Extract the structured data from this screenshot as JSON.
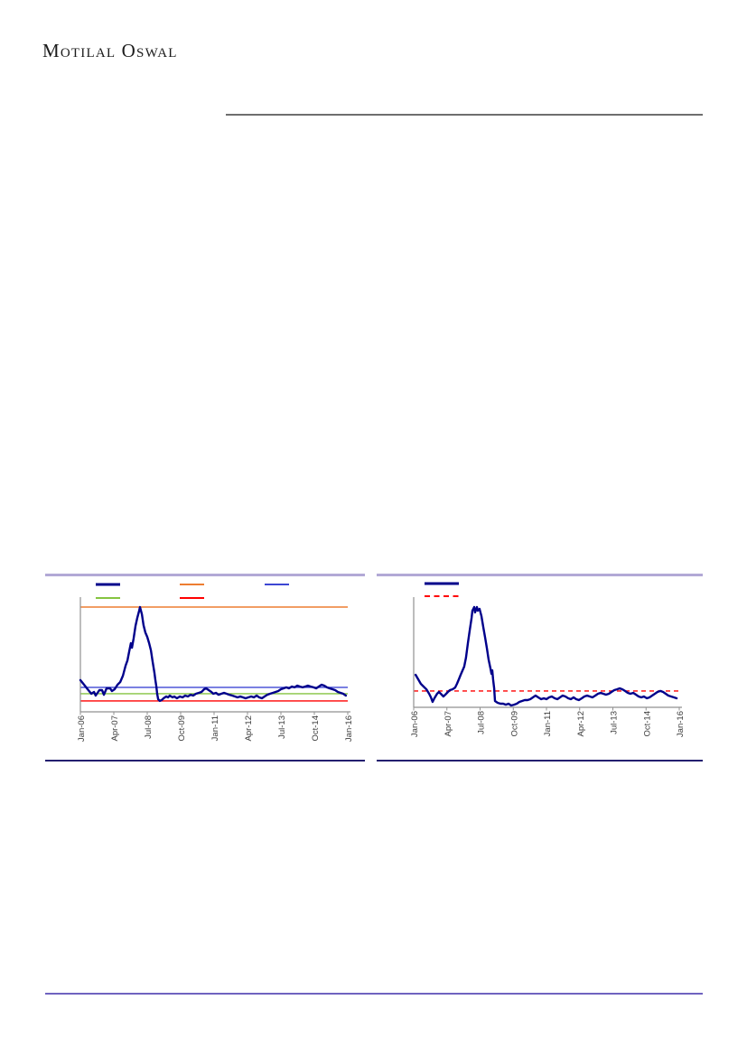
{
  "header": {
    "logo_text": "Motilal Oswal"
  },
  "dividers": {
    "header_color": "#6E6E6E",
    "chart_top_color": "#B2A9D6",
    "chart_bottom_color": "#231F70",
    "footer_color": "#6F63C0"
  },
  "chart_data": [
    {
      "type": "line",
      "title": "",
      "x_tick_labels": [
        "Jan-06",
        "Apr-07",
        "Jul-08",
        "Oct-09",
        "Jan-11",
        "Apr-12",
        "Jul-13",
        "Oct-14",
        "Jan-16"
      ],
      "y_axis": {
        "tick_labels_visible": false,
        "scale": "relative 0-100 of plot height"
      },
      "axis_color": "#919191",
      "legend": [
        {
          "label": "",
          "color": "#00008B",
          "style": "solid-thick"
        },
        {
          "label": "",
          "color": "#ED7D31",
          "style": "solid"
        },
        {
          "label": "",
          "color": "#3D46D3",
          "style": "solid"
        },
        {
          "label": "",
          "color": "#85C440",
          "style": "solid"
        },
        {
          "label": "",
          "color": "#FF0000",
          "style": "solid"
        }
      ],
      "reference_lines": [
        {
          "value": 94.3,
          "color": "#ED7D31",
          "style": "solid"
        },
        {
          "value": 22.0,
          "color": "#3D46D3",
          "style": "solid"
        },
        {
          "value": 16.3,
          "color": "#85C440",
          "style": "solid"
        },
        {
          "value": 9.8,
          "color": "#FF0000",
          "style": "solid"
        }
      ],
      "series": [
        {
          "name": "primary",
          "color": "#00008B",
          "width": 2.4,
          "points": [
            [
              0,
              28.5
            ],
            [
              0.014,
              24.4
            ],
            [
              0.027,
              20.3
            ],
            [
              0.041,
              16.3
            ],
            [
              0.051,
              17.9
            ],
            [
              0.057,
              14.6
            ],
            [
              0.071,
              19.5
            ],
            [
              0.081,
              19.5
            ],
            [
              0.088,
              15.4
            ],
            [
              0.098,
              21.1
            ],
            [
              0.111,
              21.1
            ],
            [
              0.118,
              18.7
            ],
            [
              0.128,
              20.3
            ],
            [
              0.139,
              24.4
            ],
            [
              0.149,
              26.8
            ],
            [
              0.159,
              32.5
            ],
            [
              0.169,
              41.5
            ],
            [
              0.176,
              46.3
            ],
            [
              0.182,
              53.7
            ],
            [
              0.189,
              61.8
            ],
            [
              0.193,
              57.7
            ],
            [
              0.199,
              65.9
            ],
            [
              0.206,
              77.2
            ],
            [
              0.213,
              84.6
            ],
            [
              0.22,
              91.1
            ],
            [
              0.223,
              94.3
            ],
            [
              0.23,
              87.8
            ],
            [
              0.236,
              78
            ],
            [
              0.243,
              71.5
            ],
            [
              0.25,
              67.5
            ],
            [
              0.257,
              61.8
            ],
            [
              0.264,
              55.3
            ],
            [
              0.27,
              45.5
            ],
            [
              0.277,
              35
            ],
            [
              0.28,
              29.3
            ],
            [
              0.284,
              22.8
            ],
            [
              0.287,
              16.3
            ],
            [
              0.291,
              11.4
            ],
            [
              0.297,
              9.8
            ],
            [
              0.304,
              10.6
            ],
            [
              0.311,
              12.2
            ],
            [
              0.321,
              13.8
            ],
            [
              0.328,
              13
            ],
            [
              0.334,
              14.6
            ],
            [
              0.345,
              13
            ],
            [
              0.351,
              13.8
            ],
            [
              0.361,
              12.2
            ],
            [
              0.372,
              13.8
            ],
            [
              0.382,
              13
            ],
            [
              0.392,
              14.6
            ],
            [
              0.402,
              13.8
            ],
            [
              0.412,
              15.4
            ],
            [
              0.422,
              14.6
            ],
            [
              0.432,
              16.3
            ],
            [
              0.443,
              17.1
            ],
            [
              0.453,
              17.9
            ],
            [
              0.463,
              20.3
            ],
            [
              0.47,
              21.1
            ],
            [
              0.48,
              19.5
            ],
            [
              0.49,
              17.9
            ],
            [
              0.497,
              16.3
            ],
            [
              0.507,
              17.1
            ],
            [
              0.517,
              15.4
            ],
            [
              0.527,
              16.3
            ],
            [
              0.537,
              17.1
            ],
            [
              0.547,
              16.3
            ],
            [
              0.557,
              15.4
            ],
            [
              0.568,
              14.6
            ],
            [
              0.578,
              13.8
            ],
            [
              0.588,
              13
            ],
            [
              0.598,
              13.8
            ],
            [
              0.608,
              13
            ],
            [
              0.618,
              12.2
            ],
            [
              0.628,
              13
            ],
            [
              0.639,
              13.8
            ],
            [
              0.649,
              13
            ],
            [
              0.659,
              14.6
            ],
            [
              0.669,
              13
            ],
            [
              0.679,
              12.2
            ],
            [
              0.689,
              13.8
            ],
            [
              0.699,
              15.4
            ],
            [
              0.709,
              16.3
            ],
            [
              0.72,
              17.1
            ],
            [
              0.73,
              17.9
            ],
            [
              0.74,
              18.7
            ],
            [
              0.75,
              20.3
            ],
            [
              0.76,
              21.1
            ],
            [
              0.77,
              22
            ],
            [
              0.78,
              21.1
            ],
            [
              0.791,
              22.8
            ],
            [
              0.801,
              22
            ],
            [
              0.811,
              23.6
            ],
            [
              0.821,
              22.8
            ],
            [
              0.831,
              22
            ],
            [
              0.841,
              22.8
            ],
            [
              0.851,
              23.6
            ],
            [
              0.861,
              22.8
            ],
            [
              0.872,
              22
            ],
            [
              0.882,
              21.1
            ],
            [
              0.892,
              22.8
            ],
            [
              0.902,
              24.4
            ],
            [
              0.912,
              23.6
            ],
            [
              0.922,
              22
            ],
            [
              0.932,
              21.1
            ],
            [
              0.943,
              20.3
            ],
            [
              0.953,
              19.5
            ],
            [
              0.963,
              17.9
            ],
            [
              0.973,
              17.1
            ],
            [
              0.983,
              16.3
            ],
            [
              0.993,
              14.6
            ]
          ]
        }
      ]
    },
    {
      "type": "line",
      "title": "",
      "x_tick_labels": [
        "Jan-06",
        "Apr-07",
        "Jul-08",
        "Oct-09",
        "Jan-11",
        "Apr-12",
        "Jul-13",
        "Oct-14",
        "Jan-16"
      ],
      "y_axis": {
        "tick_labels_visible": false,
        "scale": "relative 0-100 of plot height"
      },
      "axis_color": "#919191",
      "legend": [
        {
          "label": "",
          "color": "#00008B",
          "style": "solid-thick"
        },
        {
          "label": "",
          "color": "#FF0000",
          "style": "dashed"
        }
      ],
      "reference_lines": [
        {
          "value": 15.3,
          "color": "#FF0000",
          "style": "dashed"
        }
      ],
      "series": [
        {
          "name": "primary",
          "color": "#00008B",
          "width": 2.4,
          "points": [
            [
              0.007,
              30.5
            ],
            [
              0.017,
              26.3
            ],
            [
              0.027,
              22
            ],
            [
              0.037,
              19.5
            ],
            [
              0.048,
              16.9
            ],
            [
              0.058,
              12.7
            ],
            [
              0.065,
              9.3
            ],
            [
              0.071,
              5.1
            ],
            [
              0.078,
              8.5
            ],
            [
              0.088,
              12.7
            ],
            [
              0.095,
              14.4
            ],
            [
              0.102,
              12.7
            ],
            [
              0.112,
              10.2
            ],
            [
              0.119,
              11.9
            ],
            [
              0.129,
              14.4
            ],
            [
              0.136,
              16.1
            ],
            [
              0.146,
              16.9
            ],
            [
              0.156,
              18.6
            ],
            [
              0.163,
              22
            ],
            [
              0.17,
              26.3
            ],
            [
              0.177,
              30.5
            ],
            [
              0.184,
              34.7
            ],
            [
              0.19,
              38.1
            ],
            [
              0.197,
              46.6
            ],
            [
              0.204,
              60.2
            ],
            [
              0.211,
              72
            ],
            [
              0.218,
              83.9
            ],
            [
              0.221,
              90.7
            ],
            [
              0.228,
              94.1
            ],
            [
              0.231,
              89
            ],
            [
              0.238,
              94.1
            ],
            [
              0.241,
              90.7
            ],
            [
              0.248,
              92.4
            ],
            [
              0.255,
              85.6
            ],
            [
              0.262,
              75.4
            ],
            [
              0.269,
              65.3
            ],
            [
              0.276,
              55.1
            ],
            [
              0.282,
              44.9
            ],
            [
              0.289,
              36.4
            ],
            [
              0.293,
              31.4
            ],
            [
              0.296,
              34.7
            ],
            [
              0.299,
              26.3
            ],
            [
              0.303,
              17.8
            ],
            [
              0.306,
              5.9
            ],
            [
              0.316,
              4.2
            ],
            [
              0.327,
              3.4
            ],
            [
              0.337,
              3.4
            ],
            [
              0.347,
              2.5
            ],
            [
              0.357,
              3.4
            ],
            [
              0.367,
              1.7
            ],
            [
              0.378,
              2.5
            ],
            [
              0.388,
              3.4
            ],
            [
              0.398,
              5.1
            ],
            [
              0.408,
              5.9
            ],
            [
              0.418,
              6.8
            ],
            [
              0.429,
              6.8
            ],
            [
              0.439,
              7.6
            ],
            [
              0.449,
              9.3
            ],
            [
              0.459,
              11
            ],
            [
              0.469,
              9.3
            ],
            [
              0.48,
              7.6
            ],
            [
              0.49,
              8.5
            ],
            [
              0.5,
              7.6
            ],
            [
              0.51,
              9.3
            ],
            [
              0.52,
              10.2
            ],
            [
              0.531,
              8.5
            ],
            [
              0.541,
              7.6
            ],
            [
              0.551,
              9.3
            ],
            [
              0.561,
              11
            ],
            [
              0.571,
              10.2
            ],
            [
              0.582,
              8.5
            ],
            [
              0.592,
              7.6
            ],
            [
              0.602,
              9.3
            ],
            [
              0.612,
              7.6
            ],
            [
              0.622,
              6.8
            ],
            [
              0.633,
              8.5
            ],
            [
              0.643,
              10.2
            ],
            [
              0.653,
              11
            ],
            [
              0.663,
              10.2
            ],
            [
              0.673,
              9.3
            ],
            [
              0.684,
              11
            ],
            [
              0.694,
              12.7
            ],
            [
              0.704,
              13.6
            ],
            [
              0.714,
              12.7
            ],
            [
              0.724,
              11.9
            ],
            [
              0.735,
              12.7
            ],
            [
              0.745,
              14.4
            ],
            [
              0.755,
              16.1
            ],
            [
              0.765,
              16.9
            ],
            [
              0.776,
              17.8
            ],
            [
              0.786,
              16.9
            ],
            [
              0.796,
              15.3
            ],
            [
              0.806,
              13.6
            ],
            [
              0.816,
              12.7
            ],
            [
              0.827,
              13.6
            ],
            [
              0.837,
              11.9
            ],
            [
              0.847,
              10.2
            ],
            [
              0.857,
              9.3
            ],
            [
              0.867,
              10.2
            ],
            [
              0.878,
              8.5
            ],
            [
              0.888,
              9.3
            ],
            [
              0.898,
              11
            ],
            [
              0.908,
              12.7
            ],
            [
              0.918,
              14.4
            ],
            [
              0.929,
              15.3
            ],
            [
              0.939,
              14.4
            ],
            [
              0.949,
              12.7
            ],
            [
              0.959,
              11
            ],
            [
              0.969,
              10.2
            ],
            [
              0.98,
              9.3
            ],
            [
              0.99,
              8.5
            ]
          ]
        }
      ]
    }
  ]
}
